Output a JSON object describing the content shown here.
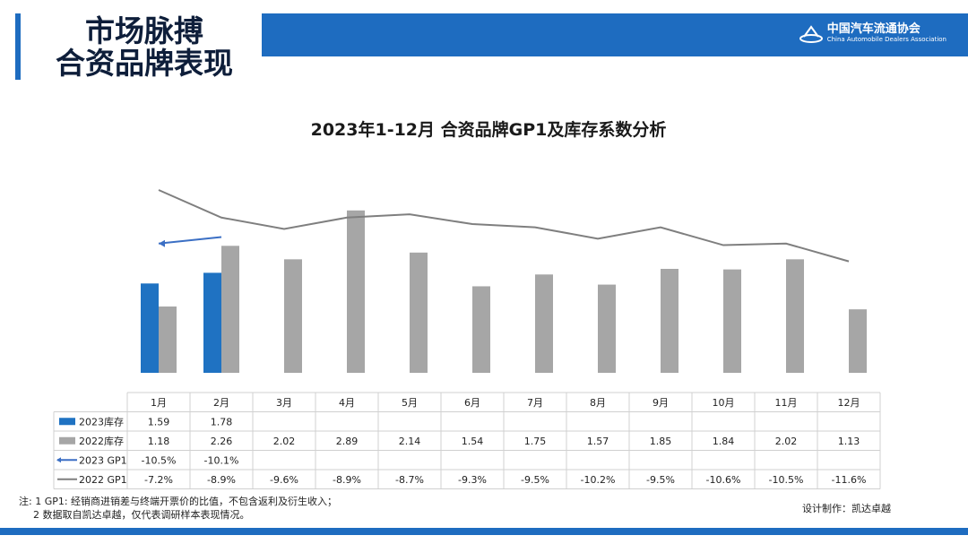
{
  "header": {
    "title_line1": "市场脉搏",
    "title_line2": "合资品牌表现",
    "logo_cn": "中国汽车流通协会",
    "logo_en": "China Automobile Dealers Association"
  },
  "colors": {
    "brand_blue": "#1e6cc0",
    "bar_2023": "#1f72c2",
    "bar_2022": "#a6a6a6",
    "line_2022": "#7f7f7f",
    "line_2023": "#3b6fc4"
  },
  "chart_data": {
    "type": "bar",
    "title": "2023年1-12月 合资品牌GP1及库存系数分析",
    "categories": [
      "1月",
      "2月",
      "3月",
      "4月",
      "5月",
      "6月",
      "7月",
      "8月",
      "9月",
      "10月",
      "11月",
      "12月"
    ],
    "series": [
      {
        "name": "2023库存",
        "kind": "bar",
        "axis": "inventory",
        "values": [
          1.59,
          1.78,
          null,
          null,
          null,
          null,
          null,
          null,
          null,
          null,
          null,
          null
        ],
        "labels": [
          "1.59",
          "1.78",
          "",
          "",
          "",
          "",
          "",
          "",
          "",
          "",
          "",
          ""
        ]
      },
      {
        "name": "2022库存",
        "kind": "bar",
        "axis": "inventory",
        "values": [
          1.18,
          2.26,
          2.02,
          2.89,
          2.14,
          1.54,
          1.75,
          1.57,
          1.85,
          1.84,
          2.02,
          1.13
        ],
        "labels": [
          "1.18",
          "2.26",
          "2.02",
          "2.89",
          "2.14",
          "1.54",
          "1.75",
          "1.57",
          "1.85",
          "1.84",
          "2.02",
          "1.13"
        ]
      },
      {
        "name": "2023 GP1",
        "kind": "line",
        "axis": "gp1",
        "values": [
          -10.5,
          -10.1,
          null,
          null,
          null,
          null,
          null,
          null,
          null,
          null,
          null,
          null
        ],
        "labels": [
          "-10.5%",
          "-10.1%",
          "",
          "",
          "",
          "",
          "",
          "",
          "",
          "",
          "",
          ""
        ]
      },
      {
        "name": "2022 GP1",
        "kind": "line",
        "axis": "gp1",
        "values": [
          -7.2,
          -8.9,
          -9.6,
          -8.9,
          -8.7,
          -9.3,
          -9.5,
          -10.2,
          -9.5,
          -10.6,
          -10.5,
          -11.6
        ],
        "labels": [
          "-7.2%",
          "-8.9%",
          "-9.6%",
          "-8.9%",
          "-8.7%",
          "-9.3%",
          "-9.5%",
          "-10.2%",
          "-9.5%",
          "-10.6%",
          "-10.5%",
          "-11.6%"
        ]
      }
    ],
    "data_table": true,
    "legend_position": "table-left"
  },
  "notes": {
    "line1": "注: 1 GP1: 经销商进销差与终端开票价的比值，不包含返利及衍生收入；",
    "line2": "2 数据取自凯达卓越，仅代表调研样本表现情况。"
  },
  "credit": "设计制作：凯达卓越"
}
